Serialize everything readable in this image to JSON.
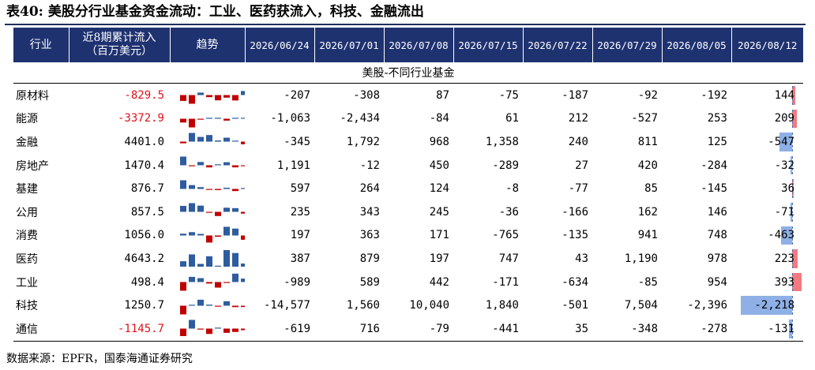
{
  "title": "表40: 美股分行业基金资金流动：工业、医药获流入，科技、金融流出",
  "header": {
    "industry": "行业",
    "total_line1": "近8期累计流入",
    "total_line2": "（百万美元）",
    "trend": "趋势",
    "dates": [
      "2026/06/24",
      "2026/07/01",
      "2026/07/08",
      "2026/07/15",
      "2026/07/22",
      "2026/07/29",
      "2026/08/05",
      "2026/08/12"
    ]
  },
  "section_label": "美股-不同行业基金",
  "rows": [
    {
      "name": "原材料",
      "total": "-829.5",
      "negative": true,
      "values": [
        "-207",
        "-308",
        "87",
        "-75",
        "-187",
        "-92",
        "-192",
        "144"
      ],
      "raw": [
        -207,
        -308,
        87,
        -75,
        -187,
        -92,
        -192,
        144
      ]
    },
    {
      "name": "能源",
      "total": "-3372.9",
      "negative": true,
      "values": [
        "-1,063",
        "-2,434",
        "-84",
        "61",
        "212",
        "-527",
        "253",
        "209"
      ],
      "raw": [
        -1063,
        -2434,
        -84,
        61,
        212,
        -527,
        253,
        209
      ]
    },
    {
      "name": "金融",
      "total": "4401.0",
      "negative": false,
      "values": [
        "-345",
        "1,792",
        "968",
        "1,358",
        "240",
        "811",
        "125",
        "-547"
      ],
      "raw": [
        -345,
        1792,
        968,
        1358,
        240,
        811,
        125,
        -547
      ]
    },
    {
      "name": "房地产",
      "total": "1470.4",
      "negative": false,
      "values": [
        "1,191",
        "-12",
        "450",
        "-289",
        "27",
        "420",
        "-284",
        "-32"
      ],
      "raw": [
        1191,
        -12,
        450,
        -289,
        27,
        420,
        -284,
        -32
      ]
    },
    {
      "name": "基建",
      "total": "876.7",
      "negative": false,
      "values": [
        "597",
        "264",
        "124",
        "-8",
        "-77",
        "85",
        "-145",
        "36"
      ],
      "raw": [
        597,
        264,
        124,
        -8,
        -77,
        85,
        -145,
        36
      ]
    },
    {
      "name": "公用",
      "total": "857.5",
      "negative": false,
      "values": [
        "235",
        "343",
        "245",
        "-36",
        "-166",
        "162",
        "146",
        "-71"
      ],
      "raw": [
        235,
        343,
        245,
        -36,
        -166,
        162,
        146,
        -71
      ]
    },
    {
      "name": "消费",
      "total": "1056.0",
      "negative": false,
      "values": [
        "197",
        "363",
        "171",
        "-765",
        "-135",
        "941",
        "748",
        "-463"
      ],
      "raw": [
        197,
        363,
        171,
        -765,
        -135,
        941,
        748,
        -463
      ]
    },
    {
      "name": "医药",
      "total": "4643.2",
      "negative": false,
      "values": [
        "387",
        "879",
        "197",
        "747",
        "43",
        "1,190",
        "978",
        "223"
      ],
      "raw": [
        387,
        879,
        197,
        747,
        43,
        1190,
        978,
        223
      ]
    },
    {
      "name": "工业",
      "total": "498.4",
      "negative": false,
      "values": [
        "-989",
        "589",
        "442",
        "-171",
        "-634",
        "-85",
        "954",
        "393"
      ],
      "raw": [
        -989,
        589,
        442,
        -171,
        -634,
        -85,
        954,
        393
      ]
    },
    {
      "name": "科技",
      "total": "1250.7",
      "negative": false,
      "values": [
        "-14,577",
        "1,560",
        "10,040",
        "1,840",
        "-501",
        "7,504",
        "-2,396",
        "-2,218"
      ],
      "raw": [
        -14577,
        1560,
        10040,
        1840,
        -501,
        7504,
        -2396,
        -2218
      ]
    },
    {
      "name": "通信",
      "total": "-1145.7",
      "negative": true,
      "values": [
        "-619",
        "716",
        "-79",
        "-441",
        "35",
        "-348",
        "-278",
        "-131"
      ],
      "raw": [
        -619,
        716,
        -79,
        -441,
        35,
        -348,
        -278,
        -131
      ]
    }
  ],
  "data_bar_max": 2218,
  "colors": {
    "header_bg": "#1f3270",
    "positive": "#c00000",
    "negative_trend": "#2e5c9e",
    "bar_pos": "#f27a80",
    "bar_neg": "#8fb0e6"
  },
  "source": "数据来源：EPFR，国泰海通证券研究"
}
